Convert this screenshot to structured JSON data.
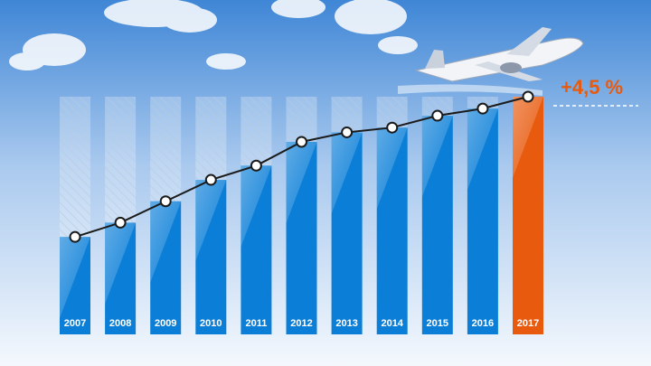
{
  "chart_data": {
    "type": "bar",
    "categories": [
      "2007",
      "2008",
      "2009",
      "2010",
      "2011",
      "2012",
      "2013",
      "2014",
      "2015",
      "2016",
      "2017"
    ],
    "values": [
      41,
      47,
      56,
      65,
      71,
      81,
      85,
      87,
      92,
      95,
      100
    ],
    "colors": [
      "#0b7fd8",
      "#0b7fd8",
      "#0b7fd8",
      "#0b7fd8",
      "#0b7fd8",
      "#0b7fd8",
      "#0b7fd8",
      "#0b7fd8",
      "#0b7fd8",
      "#0b7fd8",
      "#e85a0e"
    ],
    "line_color": "#1b1b1b",
    "ylim": [
      0,
      100
    ],
    "annotation": "+4,5 %"
  }
}
